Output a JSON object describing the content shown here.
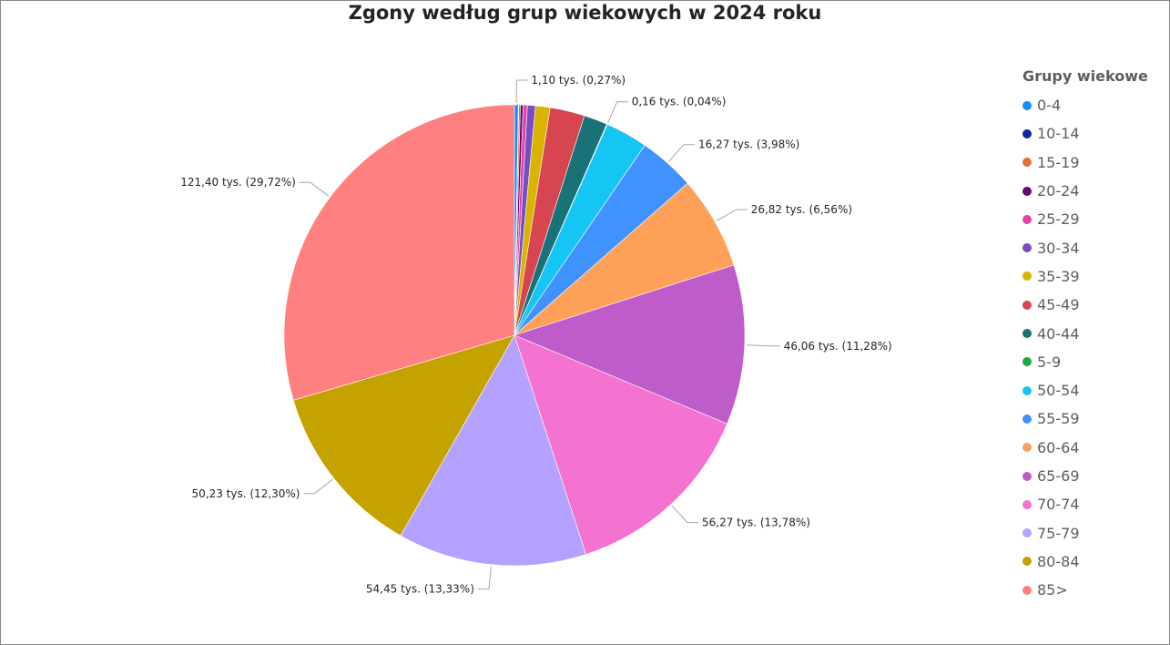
{
  "chart_data": {
    "type": "pie",
    "title": "Zgony według grup wiekowych w 2024 roku",
    "legend_title": "Grupy wiekowe",
    "legend_position": "right",
    "slices": [
      {
        "label": "0-4",
        "value": 1.1,
        "percent": 0.27,
        "color": "#118DFF",
        "data_label": "1,10 tys. (0,27%)"
      },
      {
        "label": "10-14",
        "value": 0.15,
        "percent": 0.04,
        "color": "#12239E",
        "data_label": ""
      },
      {
        "label": "15-19",
        "value": 0.45,
        "percent": 0.11,
        "color": "#E66C37",
        "data_label": ""
      },
      {
        "label": "20-24",
        "value": 0.8,
        "percent": 0.2,
        "color": "#6B007B",
        "data_label": ""
      },
      {
        "label": "25-29",
        "value": 1.2,
        "percent": 0.29,
        "color": "#E044A7",
        "data_label": ""
      },
      {
        "label": "30-34",
        "value": 2.3,
        "percent": 0.56,
        "color": "#744EC2",
        "data_label": ""
      },
      {
        "label": "35-39",
        "value": 4.2,
        "percent": 1.03,
        "color": "#D9B300",
        "data_label": ""
      },
      {
        "label": "45-49",
        "value": 10.0,
        "percent": 2.45,
        "color": "#D64550",
        "data_label": ""
      },
      {
        "label": "40-44",
        "value": 6.8,
        "percent": 1.67,
        "color": "#197278",
        "data_label": ""
      },
      {
        "label": "5-9",
        "value": 0.16,
        "percent": 0.04,
        "color": "#1AAB40",
        "data_label": "0,16 tys. (0,04%)"
      },
      {
        "label": "50-54",
        "value": 12.2,
        "percent": 2.99,
        "color": "#15C6F4",
        "data_label": ""
      },
      {
        "label": "55-59",
        "value": 16.27,
        "percent": 3.98,
        "color": "#4092FF",
        "data_label": "16,27 tys. (3,98%)"
      },
      {
        "label": "60-64",
        "value": 26.82,
        "percent": 6.56,
        "color": "#FFA058",
        "data_label": "26,82 tys. (6,56%)"
      },
      {
        "label": "65-69",
        "value": 46.06,
        "percent": 11.28,
        "color": "#BE5DC9",
        "data_label": "46,06 tys. (11,28%)"
      },
      {
        "label": "70-74",
        "value": 56.27,
        "percent": 13.78,
        "color": "#F472D0",
        "data_label": "56,27 tys. (13,78%)"
      },
      {
        "label": "75-79",
        "value": 54.45,
        "percent": 13.33,
        "color": "#B5A1FF",
        "data_label": "54,45 tys. (13,33%)"
      },
      {
        "label": "80-84",
        "value": 50.23,
        "percent": 12.3,
        "color": "#C4A200",
        "data_label": "50,23 tys. (12,30%)"
      },
      {
        "label": "85>",
        "value": 121.4,
        "percent": 29.72,
        "color": "#FF8080",
        "data_label": "121,40 tys. (29,72%)"
      }
    ]
  }
}
